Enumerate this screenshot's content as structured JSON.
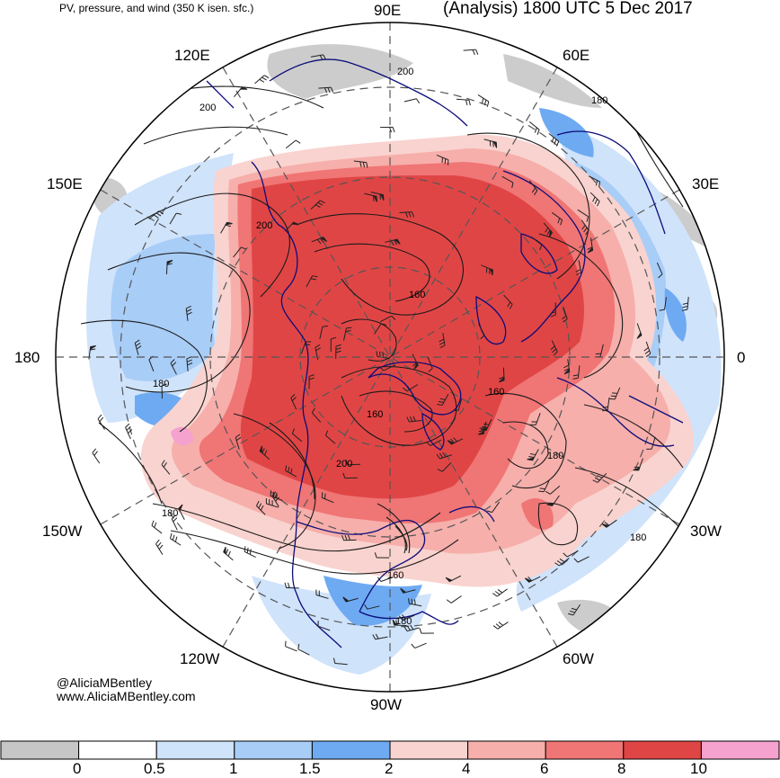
{
  "header": {
    "subtitle": "PV, pressure, and wind (350 K isen. sfc.)",
    "title": "(Analysis) 1800 UTC 5 Dec 2017"
  },
  "longitude_labels": [
    "90E",
    "60E",
    "30E",
    "0",
    "30W",
    "60W",
    "90W",
    "120W",
    "150W",
    "180",
    "150E",
    "120E"
  ],
  "contour_labels": [
    "200",
    "200",
    "200",
    "180",
    "160",
    "160",
    "160",
    "180",
    "180",
    "180",
    "200",
    "160",
    "180",
    "180"
  ],
  "credits": {
    "handle": "@AliciaMBentley",
    "website": "www.AliciaMBentley.com"
  },
  "colorbar": {
    "ticks": [
      "0",
      "0.5",
      "1",
      "1.5",
      "2",
      "4",
      "6",
      "8",
      "10"
    ],
    "colors": [
      "#c6c6c6",
      "#ffffff",
      "#cfe3fb",
      "#a8cdf7",
      "#6eaaf2",
      "#f9d3cf",
      "#f6afab",
      "#f07575",
      "#e04545",
      "#f5a2cf"
    ]
  },
  "map": {
    "projection": "north-polar-stereographic",
    "pv_fill_colors": {
      "pv_0": "#c6c6c6",
      "pv_1": "#cfe3fb",
      "pv_1_5": "#a8cdf7",
      "pv_2": "#6eaaf2",
      "pv_4": "#f9d3cf",
      "pv_6": "#f6afab",
      "pv_8": "#f07575",
      "pv_10": "#e04545",
      "pv_high": "#f5a2cf"
    },
    "coastline_color": "#0c0c7a",
    "contour_color": "#1a1a1a"
  }
}
